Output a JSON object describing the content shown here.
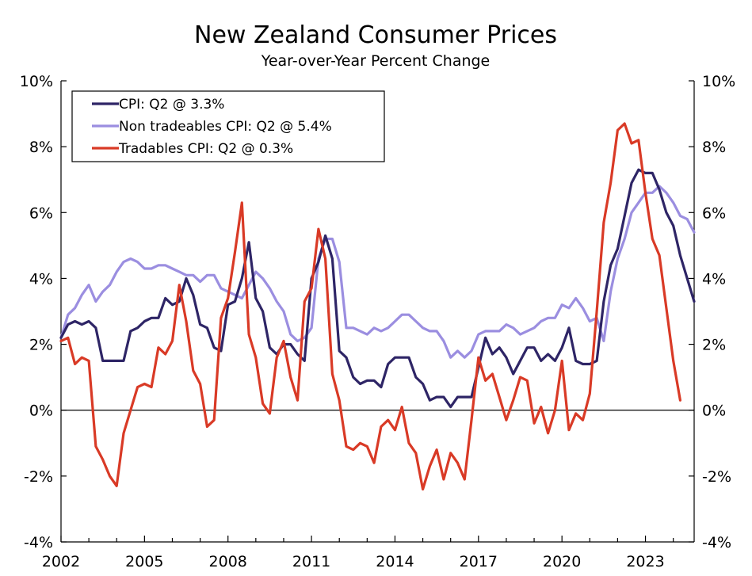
{
  "chart_data": {
    "type": "line",
    "title": "New Zealand Consumer Prices",
    "subtitle": "Year-over-Year Percent Change",
    "xlabel": "",
    "ylabel": "",
    "xlim": [
      2002,
      2024.75
    ],
    "ylim": [
      -4,
      10
    ],
    "x_ticks": [
      2002,
      2005,
      2008,
      2011,
      2014,
      2017,
      2020,
      2023
    ],
    "x_tick_labels": [
      "2002",
      "2005",
      "2008",
      "2011",
      "2014",
      "2017",
      "2020",
      "2023"
    ],
    "y_ticks": [
      -4,
      -2,
      0,
      2,
      4,
      6,
      8,
      10
    ],
    "y_tick_labels": [
      "-4%",
      "-2%",
      "0%",
      "2%",
      "4%",
      "6%",
      "8%",
      "10%"
    ],
    "legend_position": "top-left",
    "x_start": 2002,
    "x_step": 0.25,
    "series": [
      {
        "name": "CPI: Q2 @ 3.3%",
        "color": "#2e2566",
        "values": [
          2.2,
          2.6,
          2.7,
          2.6,
          2.7,
          2.5,
          1.5,
          1.5,
          1.5,
          1.5,
          2.4,
          2.5,
          2.7,
          2.8,
          2.8,
          3.4,
          3.2,
          3.3,
          4.0,
          3.5,
          2.6,
          2.5,
          1.9,
          1.8,
          3.2,
          3.3,
          4.0,
          5.1,
          3.4,
          3.0,
          1.9,
          1.7,
          2.0,
          2.0,
          1.7,
          1.5,
          4.0,
          4.5,
          5.3,
          4.6,
          1.8,
          1.6,
          1.0,
          0.8,
          0.9,
          0.9,
          0.7,
          1.4,
          1.6,
          1.6,
          1.6,
          1.0,
          0.8,
          0.3,
          0.4,
          0.4,
          0.1,
          0.4,
          0.4,
          0.4,
          1.3,
          2.2,
          1.7,
          1.9,
          1.6,
          1.1,
          1.5,
          1.9,
          1.9,
          1.5,
          1.7,
          1.5,
          1.9,
          2.5,
          1.5,
          1.4,
          1.4,
          1.5,
          3.3,
          4.4,
          4.9,
          5.9,
          6.9,
          7.3,
          7.2,
          7.2,
          6.7,
          6.0,
          5.6,
          4.7,
          4.0,
          3.3
        ]
      },
      {
        "name": "Non tradeables CPI: Q2 @ 5.4%",
        "color": "#9b8ee0",
        "values": [
          2.2,
          2.9,
          3.1,
          3.5,
          3.8,
          3.3,
          3.6,
          3.8,
          4.2,
          4.5,
          4.6,
          4.5,
          4.3,
          4.3,
          4.4,
          4.4,
          4.3,
          4.2,
          4.1,
          4.1,
          3.9,
          4.1,
          4.1,
          3.7,
          3.6,
          3.5,
          3.4,
          3.8,
          4.2,
          4.0,
          3.7,
          3.3,
          3.0,
          2.3,
          2.1,
          2.2,
          2.5,
          4.6,
          5.2,
          5.2,
          4.5,
          2.5,
          2.5,
          2.4,
          2.3,
          2.5,
          2.4,
          2.5,
          2.7,
          2.9,
          2.9,
          2.7,
          2.5,
          2.4,
          2.4,
          2.1,
          1.6,
          1.8,
          1.6,
          1.8,
          2.3,
          2.4,
          2.4,
          2.4,
          2.6,
          2.5,
          2.3,
          2.4,
          2.5,
          2.7,
          2.8,
          2.8,
          3.2,
          3.1,
          3.4,
          3.1,
          2.7,
          2.8,
          2.1,
          3.6,
          4.6,
          5.2,
          6.0,
          6.3,
          6.6,
          6.6,
          6.8,
          6.6,
          6.3,
          5.9,
          5.8,
          5.4
        ]
      },
      {
        "name": "Tradables CPI: Q2 @ 0.3%",
        "color": "#d93a26",
        "values": [
          2.1,
          2.2,
          1.4,
          1.6,
          1.5,
          -1.1,
          -1.5,
          -2.0,
          -2.3,
          -0.7,
          0.0,
          0.7,
          0.8,
          0.7,
          1.9,
          1.7,
          2.1,
          3.8,
          2.7,
          1.2,
          0.8,
          -0.5,
          -0.3,
          2.8,
          3.4,
          4.8,
          6.3,
          2.3,
          1.6,
          0.2,
          -0.1,
          1.6,
          2.1,
          1.0,
          0.3,
          3.3,
          3.7,
          5.5,
          4.6,
          1.1,
          0.3,
          -1.1,
          -1.2,
          -1.0,
          -1.1,
          -1.6,
          -0.5,
          -0.3,
          -0.6,
          0.1,
          -1.0,
          -1.3,
          -2.4,
          -1.7,
          -1.2,
          -2.1,
          -1.3,
          -1.6,
          -2.1,
          -0.3,
          1.6,
          0.9,
          1.1,
          0.4,
          -0.3,
          0.3,
          1.0,
          0.9,
          -0.4,
          0.1,
          -0.7,
          0.0,
          1.5,
          -0.6,
          -0.1,
          -0.3,
          0.5,
          3.0,
          5.7,
          6.9,
          8.5,
          8.7,
          8.1,
          8.2,
          6.6,
          5.2,
          4.7,
          3.1,
          1.5,
          0.3
        ]
      }
    ]
  }
}
